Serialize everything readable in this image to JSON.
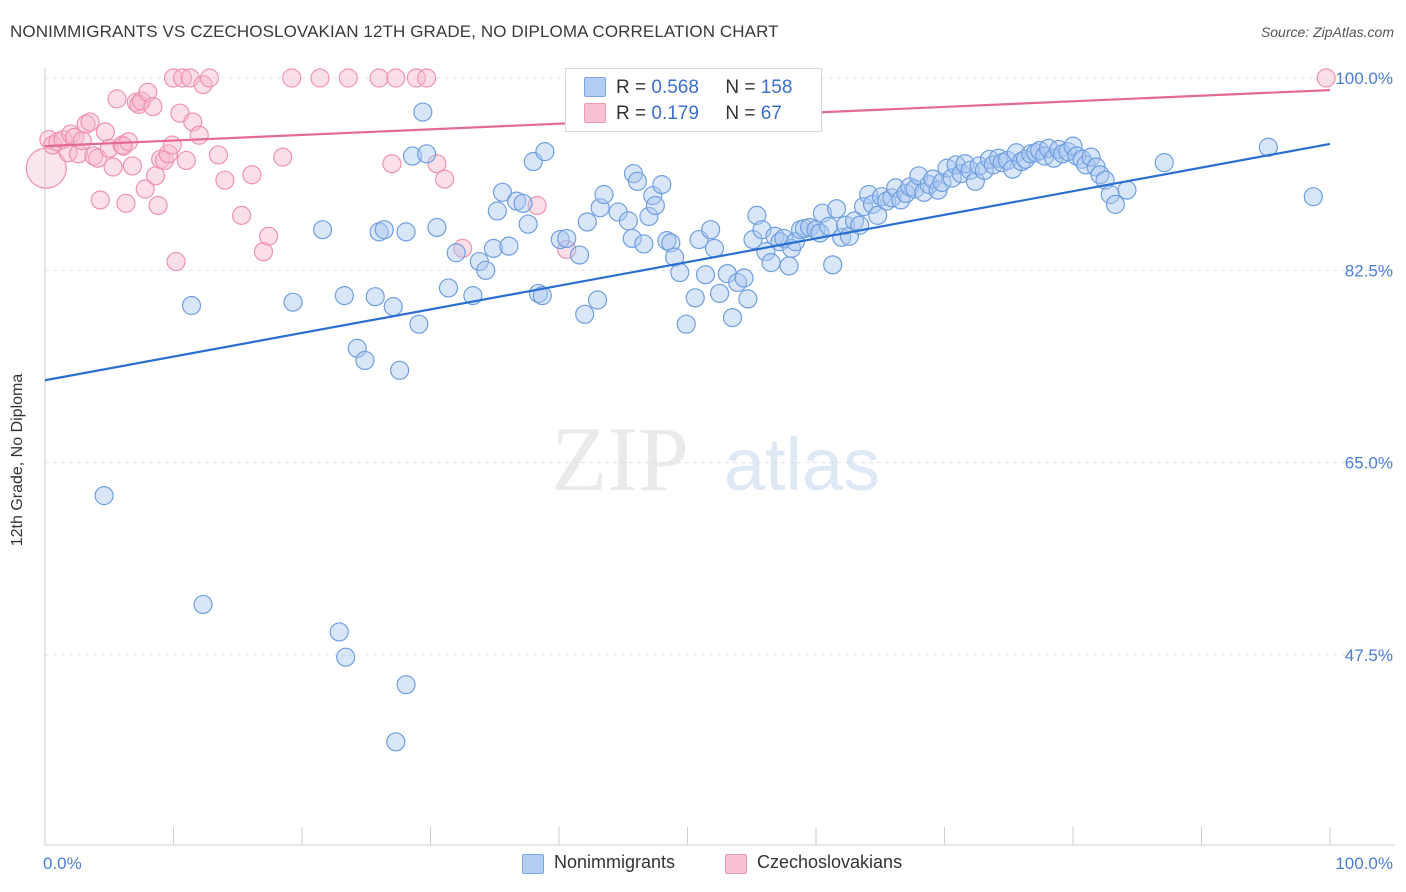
{
  "header": {
    "title": "NONIMMIGRANTS VS CZECHOSLOVAKIAN 12TH GRADE, NO DIPLOMA CORRELATION CHART",
    "source": "Source: ZipAtlas.com"
  },
  "watermark": {
    "zip": "ZIP",
    "atlas": "atlas"
  },
  "legend_top": {
    "rows": [
      {
        "r_label": "R =",
        "r_value": "0.568",
        "n_label": "N =",
        "n_value": "158"
      },
      {
        "r_label": "R =",
        "r_value": "0.179",
        "n_label": "N =",
        "n_value": "67"
      }
    ]
  },
  "legend_bottom": {
    "items": [
      {
        "label": "Nonimmigrants"
      },
      {
        "label": "Czechoslovakians"
      }
    ]
  },
  "colors": {
    "blue_fill": "#aac7f0",
    "blue_stroke": "#6f9fe0",
    "blue_line": "#2a6fd0",
    "pink_fill": "#f7b8cb",
    "pink_stroke": "#ee93af",
    "pink_line": "#e46a93",
    "axis_label_blue": "#4a7fd0",
    "grid": "#e3e3e3"
  },
  "chart_data": {
    "type": "scatter",
    "title": "NONIMMIGRANTS VS CZECHOSLOVAKIAN 12TH GRADE, NO DIPLOMA CORRELATION CHART",
    "xlabel": "",
    "ylabel": "12th Grade, No Diploma",
    "xlim": [
      0,
      100
    ],
    "ylim": [
      32,
      102
    ],
    "x_tick_labels": [
      "0.0%",
      "100.0%"
    ],
    "y_ticks": [
      47.5,
      65.0,
      82.5,
      100.0
    ],
    "y_tick_labels": [
      "47.5%",
      "65.0%",
      "82.5%",
      "100.0%"
    ],
    "grid": true,
    "legend_placement": "bottom-center",
    "series": [
      {
        "name": "Nonimmigrants",
        "color": "#aac7f0",
        "trend": [
          [
            0,
            72.5
          ],
          [
            100,
            94.0
          ]
        ],
        "points": [
          [
            11.4,
            79.3
          ],
          [
            19.3,
            79.6
          ],
          [
            21.6,
            86.2
          ],
          [
            23.3,
            80.2
          ],
          [
            24.3,
            75.4
          ],
          [
            24.9,
            74.3
          ],
          [
            25.7,
            80.1
          ],
          [
            26.0,
            86.0
          ],
          [
            26.4,
            86.2
          ],
          [
            27.1,
            79.2
          ],
          [
            27.6,
            73.4
          ],
          [
            28.1,
            86.0
          ],
          [
            28.6,
            92.9
          ],
          [
            29.1,
            77.6
          ],
          [
            29.4,
            96.9
          ],
          [
            29.7,
            93.1
          ],
          [
            30.5,
            86.4
          ],
          [
            31.4,
            80.9
          ],
          [
            32.0,
            84.1
          ],
          [
            33.3,
            80.2
          ],
          [
            33.8,
            83.3
          ],
          [
            34.3,
            82.5
          ],
          [
            34.9,
            84.5
          ],
          [
            35.2,
            87.9
          ],
          [
            35.6,
            89.6
          ],
          [
            36.1,
            84.7
          ],
          [
            36.7,
            88.8
          ],
          [
            37.2,
            88.6
          ],
          [
            37.6,
            86.7
          ],
          [
            38.0,
            92.4
          ],
          [
            38.4,
            80.4
          ],
          [
            38.7,
            80.2
          ],
          [
            38.9,
            93.3
          ],
          [
            40.1,
            85.3
          ],
          [
            40.6,
            85.4
          ],
          [
            41.6,
            83.9
          ],
          [
            42.0,
            78.5
          ],
          [
            42.2,
            86.9
          ],
          [
            43.0,
            79.8
          ],
          [
            43.2,
            88.2
          ],
          [
            43.5,
            89.4
          ],
          [
            44.6,
            87.8
          ],
          [
            45.4,
            87.0
          ],
          [
            45.7,
            85.4
          ],
          [
            45.8,
            91.3
          ],
          [
            46.1,
            90.6
          ],
          [
            46.6,
            84.9
          ],
          [
            47.0,
            87.4
          ],
          [
            47.3,
            89.3
          ],
          [
            47.5,
            88.4
          ],
          [
            48.0,
            90.3
          ],
          [
            48.4,
            85.2
          ],
          [
            48.7,
            85.0
          ],
          [
            49.0,
            83.7
          ],
          [
            49.4,
            82.3
          ],
          [
            49.9,
            77.6
          ],
          [
            50.6,
            80.0
          ],
          [
            50.9,
            85.3
          ],
          [
            51.4,
            82.1
          ],
          [
            51.8,
            86.2
          ],
          [
            52.1,
            84.5
          ],
          [
            52.5,
            80.4
          ],
          [
            53.1,
            82.2
          ],
          [
            53.5,
            78.2
          ],
          [
            53.9,
            81.4
          ],
          [
            54.4,
            81.8
          ],
          [
            54.7,
            79.9
          ],
          [
            55.1,
            85.3
          ],
          [
            55.4,
            87.5
          ],
          [
            55.8,
            86.2
          ],
          [
            56.1,
            84.2
          ],
          [
            56.5,
            83.2
          ],
          [
            56.8,
            85.6
          ],
          [
            57.2,
            85.1
          ],
          [
            57.5,
            85.4
          ],
          [
            57.9,
            82.9
          ],
          [
            58.1,
            84.5
          ],
          [
            58.4,
            85.1
          ],
          [
            58.8,
            86.2
          ],
          [
            59.1,
            86.3
          ],
          [
            59.5,
            86.4
          ],
          [
            60.0,
            86.2
          ],
          [
            60.3,
            85.9
          ],
          [
            60.5,
            87.7
          ],
          [
            61.0,
            86.5
          ],
          [
            61.3,
            83.0
          ],
          [
            61.6,
            88.1
          ],
          [
            62.0,
            85.5
          ],
          [
            62.3,
            86.6
          ],
          [
            62.6,
            85.6
          ],
          [
            63.0,
            87.0
          ],
          [
            63.4,
            86.6
          ],
          [
            63.7,
            88.3
          ],
          [
            64.1,
            89.4
          ],
          [
            64.4,
            88.5
          ],
          [
            64.8,
            87.5
          ],
          [
            65.1,
            89.2
          ],
          [
            65.5,
            88.8
          ],
          [
            65.9,
            89.1
          ],
          [
            66.2,
            90.0
          ],
          [
            66.6,
            88.9
          ],
          [
            67.0,
            89.5
          ],
          [
            67.3,
            90.1
          ],
          [
            67.7,
            89.9
          ],
          [
            68.0,
            91.1
          ],
          [
            68.4,
            89.6
          ],
          [
            68.8,
            90.3
          ],
          [
            69.1,
            90.8
          ],
          [
            69.5,
            89.8
          ],
          [
            69.8,
            90.5
          ],
          [
            70.2,
            91.8
          ],
          [
            70.6,
            90.9
          ],
          [
            70.9,
            92.1
          ],
          [
            71.3,
            91.3
          ],
          [
            71.6,
            92.2
          ],
          [
            72.0,
            91.6
          ],
          [
            72.4,
            90.6
          ],
          [
            72.7,
            92.0
          ],
          [
            73.1,
            91.6
          ],
          [
            73.5,
            92.6
          ],
          [
            73.8,
            92.1
          ],
          [
            74.2,
            92.7
          ],
          [
            74.5,
            92.3
          ],
          [
            74.9,
            92.5
          ],
          [
            75.3,
            91.7
          ],
          [
            75.6,
            93.2
          ],
          [
            76.0,
            92.4
          ],
          [
            76.3,
            92.6
          ],
          [
            76.7,
            93.1
          ],
          [
            77.1,
            93.2
          ],
          [
            77.4,
            93.4
          ],
          [
            77.8,
            92.9
          ],
          [
            78.1,
            93.6
          ],
          [
            78.5,
            92.7
          ],
          [
            78.9,
            93.5
          ],
          [
            79.2,
            93.1
          ],
          [
            79.6,
            93.3
          ],
          [
            80.0,
            93.8
          ],
          [
            80.3,
            92.9
          ],
          [
            80.7,
            92.6
          ],
          [
            81.0,
            92.1
          ],
          [
            81.4,
            92.8
          ],
          [
            81.8,
            91.9
          ],
          [
            82.1,
            91.2
          ],
          [
            82.5,
            90.7
          ],
          [
            82.9,
            89.4
          ],
          [
            83.3,
            88.5
          ],
          [
            84.2,
            89.8
          ],
          [
            87.1,
            92.3
          ],
          [
            95.2,
            93.7
          ],
          [
            98.7,
            89.2
          ],
          [
            4.6,
            62.0
          ],
          [
            12.3,
            52.1
          ],
          [
            22.9,
            49.6
          ],
          [
            23.4,
            47.3
          ],
          [
            28.1,
            44.8
          ],
          [
            27.3,
            39.6
          ]
        ]
      },
      {
        "name": "Czechoslovakians",
        "color": "#f7b8cb",
        "trend": [
          [
            0,
            93.8
          ],
          [
            100,
            98.9
          ]
        ],
        "points": [
          [
            0.1,
            91.8
          ],
          [
            0.3,
            94.4
          ],
          [
            0.6,
            93.9
          ],
          [
            1.0,
            94.2
          ],
          [
            1.4,
            94.4
          ],
          [
            1.8,
            93.2
          ],
          [
            2.0,
            94.9
          ],
          [
            2.3,
            94.6
          ],
          [
            2.6,
            93.1
          ],
          [
            2.9,
            94.3
          ],
          [
            3.2,
            95.8
          ],
          [
            3.5,
            96.0
          ],
          [
            3.8,
            92.9
          ],
          [
            4.1,
            92.7
          ],
          [
            4.3,
            88.9
          ],
          [
            4.7,
            95.1
          ],
          [
            5.0,
            93.6
          ],
          [
            5.3,
            91.9
          ],
          [
            5.6,
            98.1
          ],
          [
            6.0,
            93.9
          ],
          [
            6.1,
            93.8
          ],
          [
            6.3,
            88.6
          ],
          [
            6.5,
            94.2
          ],
          [
            6.8,
            92.0
          ],
          [
            7.1,
            97.8
          ],
          [
            7.3,
            97.6
          ],
          [
            7.5,
            97.9
          ],
          [
            7.8,
            89.9
          ],
          [
            8.0,
            98.7
          ],
          [
            8.4,
            97.4
          ],
          [
            8.6,
            91.1
          ],
          [
            8.8,
            88.4
          ],
          [
            9.0,
            92.6
          ],
          [
            9.3,
            92.5
          ],
          [
            9.6,
            93.1
          ],
          [
            9.9,
            93.9
          ],
          [
            10.0,
            100.0
          ],
          [
            10.2,
            83.3
          ],
          [
            10.5,
            96.8
          ],
          [
            10.7,
            100.0
          ],
          [
            11.0,
            92.5
          ],
          [
            11.3,
            100.0
          ],
          [
            11.5,
            96.0
          ],
          [
            12.0,
            94.8
          ],
          [
            12.3,
            99.4
          ],
          [
            12.8,
            100.0
          ],
          [
            13.5,
            93.0
          ],
          [
            14.0,
            90.7
          ],
          [
            15.3,
            87.5
          ],
          [
            16.1,
            91.2
          ],
          [
            17.0,
            84.2
          ],
          [
            17.4,
            85.6
          ],
          [
            18.5,
            92.8
          ],
          [
            19.2,
            100.0
          ],
          [
            21.4,
            100.0
          ],
          [
            23.6,
            100.0
          ],
          [
            26.0,
            100.0
          ],
          [
            27.0,
            92.2
          ],
          [
            27.3,
            100.0
          ],
          [
            28.9,
            100.0
          ],
          [
            29.7,
            100.0
          ],
          [
            30.5,
            92.2
          ],
          [
            31.1,
            90.8
          ],
          [
            32.5,
            84.5
          ],
          [
            38.3,
            88.4
          ],
          [
            40.6,
            84.4
          ],
          [
            99.7,
            100.0
          ]
        ]
      }
    ]
  }
}
